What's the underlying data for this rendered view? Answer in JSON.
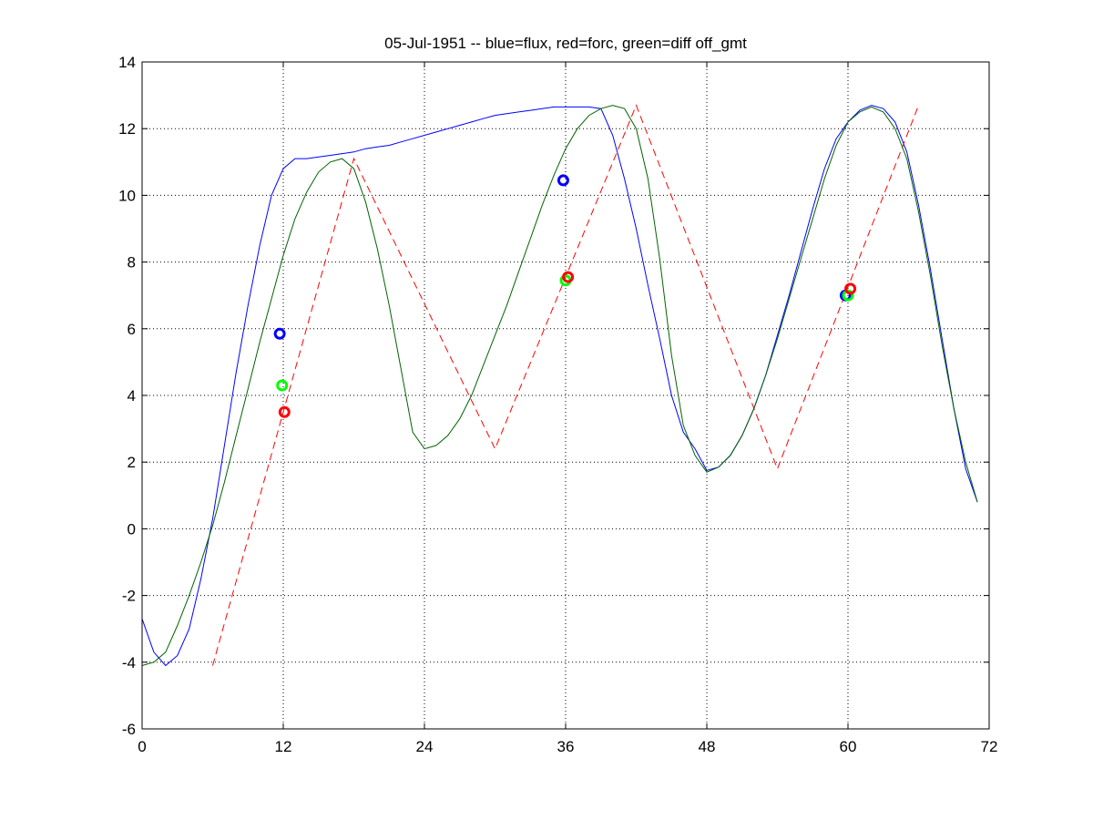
{
  "chart_data": {
    "type": "line",
    "title": "05-Jul-1951 -- blue=flux, red=forc, green=diff off_gmt",
    "xlabel": "",
    "ylabel": "",
    "xlim": [
      0,
      72
    ],
    "ylim": [
      -6,
      14
    ],
    "xticks": [
      0,
      12,
      24,
      36,
      48,
      60,
      72
    ],
    "yticks": [
      -6,
      -4,
      -2,
      0,
      2,
      4,
      6,
      8,
      10,
      12,
      14
    ],
    "grid": true,
    "legend": "none",
    "series": [
      {
        "color": "#0000ff",
        "style": "solid",
        "x": [
          0,
          1,
          2,
          3,
          4,
          5,
          6,
          7,
          8,
          9,
          10,
          11,
          12,
          13,
          14,
          15,
          16,
          17,
          18,
          19,
          20,
          21,
          22,
          23,
          24,
          25,
          26,
          27,
          28,
          29,
          30,
          31,
          32,
          33,
          34,
          35,
          36,
          37,
          38,
          39,
          40,
          41,
          42,
          43,
          44,
          45,
          46,
          47,
          48,
          49,
          50,
          51,
          52,
          53,
          54,
          55,
          56,
          57,
          58,
          59,
          60,
          61,
          62,
          63,
          64,
          65,
          66,
          67,
          68,
          69,
          70,
          71
        ],
        "y": [
          -2.7,
          -3.7,
          -4.1,
          -3.8,
          -3.0,
          -1.5,
          0.3,
          2.5,
          4.7,
          6.7,
          8.5,
          10.0,
          10.8,
          11.1,
          11.1,
          11.15,
          11.2,
          11.25,
          11.3,
          11.4,
          11.45,
          11.5,
          11.6,
          11.7,
          11.8,
          11.9,
          12.0,
          12.1,
          12.2,
          12.3,
          12.4,
          12.45,
          12.5,
          12.55,
          12.6,
          12.65,
          12.65,
          12.65,
          12.65,
          12.6,
          11.8,
          10.5,
          9.0,
          7.3,
          5.7,
          4.0,
          2.9,
          2.4,
          1.75,
          1.85,
          2.2,
          2.8,
          3.6,
          4.6,
          5.8,
          7.0,
          8.3,
          9.6,
          10.8,
          11.7,
          12.2,
          12.55,
          12.7,
          12.6,
          12.2,
          11.3,
          9.7,
          7.8,
          5.7,
          3.6,
          1.8,
          0.8
        ]
      },
      {
        "color": "#ff0000",
        "style": "dashed",
        "x": [
          6,
          18,
          30,
          42,
          54,
          66
        ],
        "y": [
          -4.1,
          11.1,
          2.4,
          12.7,
          1.8,
          12.7
        ]
      },
      {
        "color": "#006400",
        "style": "solid",
        "x": [
          0,
          1,
          2,
          3,
          4,
          5,
          6,
          7,
          8,
          9,
          10,
          11,
          12,
          13,
          14,
          15,
          16,
          17,
          18,
          19,
          20,
          21,
          22,
          23,
          24,
          25,
          26,
          27,
          28,
          29,
          30,
          31,
          32,
          33,
          34,
          35,
          36,
          37,
          38,
          39,
          40,
          41,
          42,
          43,
          44,
          45,
          46,
          47,
          48,
          49,
          50,
          51,
          52,
          53,
          54,
          55,
          56,
          57,
          58,
          59,
          60,
          61,
          62,
          63,
          64,
          65,
          66,
          67,
          68,
          69,
          70,
          71
        ],
        "y": [
          -4.1,
          -4.0,
          -3.7,
          -2.9,
          -2.0,
          -1.0,
          0.1,
          1.4,
          2.8,
          4.2,
          5.6,
          6.9,
          8.2,
          9.3,
          10.1,
          10.7,
          11.0,
          11.1,
          10.8,
          9.8,
          8.4,
          6.7,
          4.8,
          2.9,
          2.4,
          2.5,
          2.8,
          3.3,
          4.0,
          4.9,
          5.8,
          6.7,
          7.7,
          8.7,
          9.7,
          10.6,
          11.4,
          12.0,
          12.4,
          12.6,
          12.7,
          12.6,
          12.0,
          10.5,
          8.1,
          5.2,
          3.1,
          2.2,
          1.7,
          1.85,
          2.2,
          2.8,
          3.6,
          4.6,
          5.7,
          6.9,
          8.1,
          9.3,
          10.5,
          11.5,
          12.2,
          12.5,
          12.65,
          12.5,
          12.0,
          11.1,
          9.5,
          7.6,
          5.5,
          3.6,
          2.0,
          0.8
        ]
      }
    ],
    "markers": [
      {
        "x": 11.7,
        "y": 5.85,
        "color": "#0000ff"
      },
      {
        "x": 11.9,
        "y": 4.3,
        "color": "#00ff00"
      },
      {
        "x": 12.1,
        "y": 3.5,
        "color": "#ff0000"
      },
      {
        "x": 35.8,
        "y": 10.45,
        "color": "#0000ff"
      },
      {
        "x": 36.0,
        "y": 7.45,
        "color": "#00ff00"
      },
      {
        "x": 36.2,
        "y": 7.55,
        "color": "#ff0000"
      },
      {
        "x": 59.8,
        "y": 7.0,
        "color": "#0000ff"
      },
      {
        "x": 60.0,
        "y": 7.0,
        "color": "#00ff00"
      },
      {
        "x": 60.2,
        "y": 7.2,
        "color": "#ff0000"
      }
    ]
  }
}
